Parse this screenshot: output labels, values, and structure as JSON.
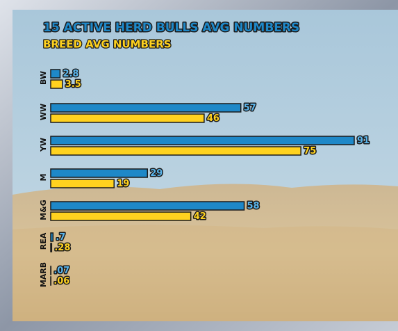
{
  "chart_data": {
    "type": "bar",
    "orientation": "horizontal",
    "categories": [
      "BW",
      "WW",
      "YW",
      "M",
      "M&G",
      "REA",
      "MARB"
    ],
    "series": [
      {
        "name": "15 ACTIVE HERD BULLS AVG NUMBERS",
        "color": "#1e88c8",
        "values": [
          2.8,
          57,
          91,
          29,
          58,
          0.7,
          0.07
        ],
        "value_labels": [
          "2.8",
          "57",
          "91",
          "29",
          "58",
          ".7",
          ".07"
        ]
      },
      {
        "name": "BREED AVG NUMBERS",
        "color": "#ffd21f",
        "values": [
          3.5,
          46,
          75,
          19,
          42,
          0.28,
          0.06
        ],
        "value_labels": [
          "3.5",
          "46",
          "75",
          "19",
          "42",
          ".28",
          ".06"
        ]
      }
    ]
  }
}
